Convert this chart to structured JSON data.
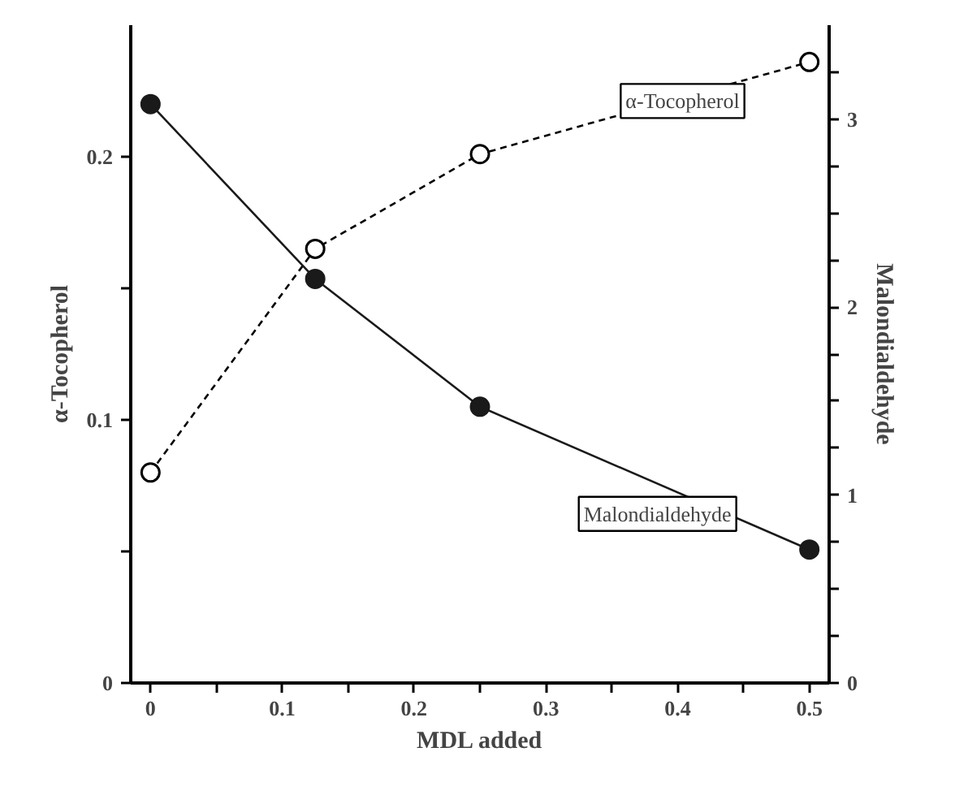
{
  "chart_data": {
    "type": "line",
    "xlabel": "MDL added",
    "ylabel": "α-Tocopherol",
    "y2label": "Malondialdehyde",
    "x": [
      0,
      0.125,
      0.25,
      0.5
    ],
    "series": [
      {
        "name": "α-Tocopherol",
        "color": "#000000",
        "values": [
          0.08,
          0.165,
          0.201,
          0.236
        ],
        "line_style": "dashed"
      },
      {
        "name": "Malondialdehyde",
        "color": "#1a1a1a",
        "values": [
          3.08,
          2.15,
          1.47,
          0.71
        ],
        "axis": "y2",
        "line_style": "solid"
      }
    ],
    "xlim": [
      -0.015,
      0.515
    ],
    "ylim": [
      0,
      0.25
    ],
    "y2lim": [
      0,
      3.5
    ],
    "xticks": [
      0,
      {
        "value": 0.05,
        "label": null
      },
      0.1,
      {
        "value": 0.15,
        "label": null
      },
      0.2,
      {
        "value": 0.25,
        "label": null
      },
      0.3,
      {
        "value": 0.35,
        "label": null
      },
      0.4,
      {
        "value": 0.45,
        "label": null
      },
      0.5
    ],
    "yticks": [
      0,
      {
        "value": 0.05,
        "label": null
      },
      0.1,
      {
        "value": 0.15,
        "label": null
      },
      0.2
    ],
    "y2ticks": [
      0,
      {
        "value": 0.25,
        "label": null
      },
      {
        "value": 0.5,
        "label": null
      },
      {
        "value": 0.75,
        "label": null
      },
      1,
      {
        "value": 1.25,
        "label": null
      },
      {
        "value": 1.5,
        "label": null
      },
      {
        "value": 1.75,
        "label": null
      },
      2,
      {
        "value": 2.25,
        "label": null
      },
      {
        "value": 2.5,
        "label": null
      },
      {
        "value": 2.75,
        "label": null
      },
      3,
      {
        "value": 3.25,
        "label": null
      }
    ],
    "marker": "circle",
    "grid": false,
    "legend": false
  }
}
